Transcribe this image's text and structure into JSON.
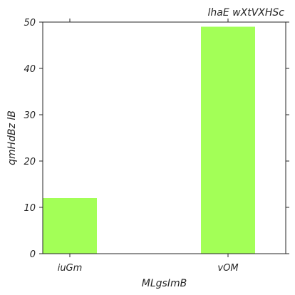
{
  "chart_data": {
    "type": "bar",
    "title": "lhaE wXtVXHSc",
    "xlabel": "MLgsImB",
    "ylabel": "qmHdBz lB",
    "categories": [
      "iuGm",
      "vOM"
    ],
    "values": [
      12,
      49
    ],
    "ylim": [
      0,
      50
    ],
    "yticks": [
      0,
      10,
      20,
      30,
      40,
      50
    ],
    "bar_color": "#a3ff57",
    "grid": false,
    "legend": "none"
  }
}
